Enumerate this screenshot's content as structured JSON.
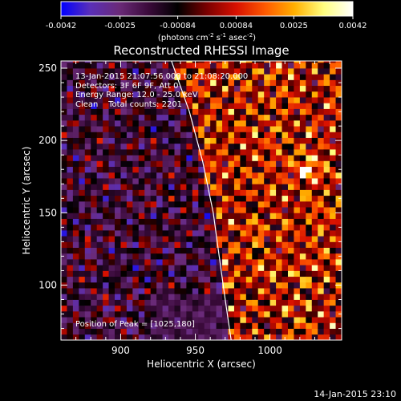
{
  "colorbar": {
    "ticks": [
      "-0.0042",
      "-0.0025",
      "-0.00084",
      "0.00084",
      "0.0025",
      "0.0042"
    ],
    "units_parts": [
      "(photons cm",
      "-2",
      " s",
      "-1",
      " asec",
      "-2",
      ")"
    ]
  },
  "chart_data": {
    "type": "heatmap",
    "title": "Reconstructed RHESSI Image",
    "xlabel": "Heliocentric X (arcsec)",
    "ylabel": "Heliocentric Y (arcsec)",
    "xlim": [
      860,
      1048
    ],
    "ylim": [
      62,
      255
    ],
    "xticks": [
      900,
      950,
      1000
    ],
    "yticks": [
      100,
      150,
      200,
      250
    ],
    "value_range": [
      -0.0042,
      0.0042
    ],
    "pixel_size_arcsec": 4,
    "colormap": [
      "#0000ff",
      "#5a2fb8",
      "#6a2a78",
      "#3a0a3a",
      "#000000",
      "#7a0000",
      "#d81000",
      "#ff5a00",
      "#ffb000",
      "#ffff80",
      "#ffffff"
    ],
    "limb_curve": [
      [
        934,
        255
      ],
      [
        946,
        220
      ],
      [
        955,
        185
      ],
      [
        962,
        150
      ],
      [
        966,
        120
      ],
      [
        970,
        90
      ],
      [
        974,
        62
      ]
    ],
    "peak": [
      1025,
      180
    ],
    "annotations": [
      "13-Jan-2015 21:07:56.000 to 21:08:20.000",
      "Detectors: 3F 6F 9F, Att 0",
      "Energy Range: 12.0 - 25.0 keV",
      "Clean    Total counts: 2201",
      "Position of Peak = [1025,180]"
    ]
  },
  "footer": {
    "date": "14-Jan-2015 23:10"
  }
}
